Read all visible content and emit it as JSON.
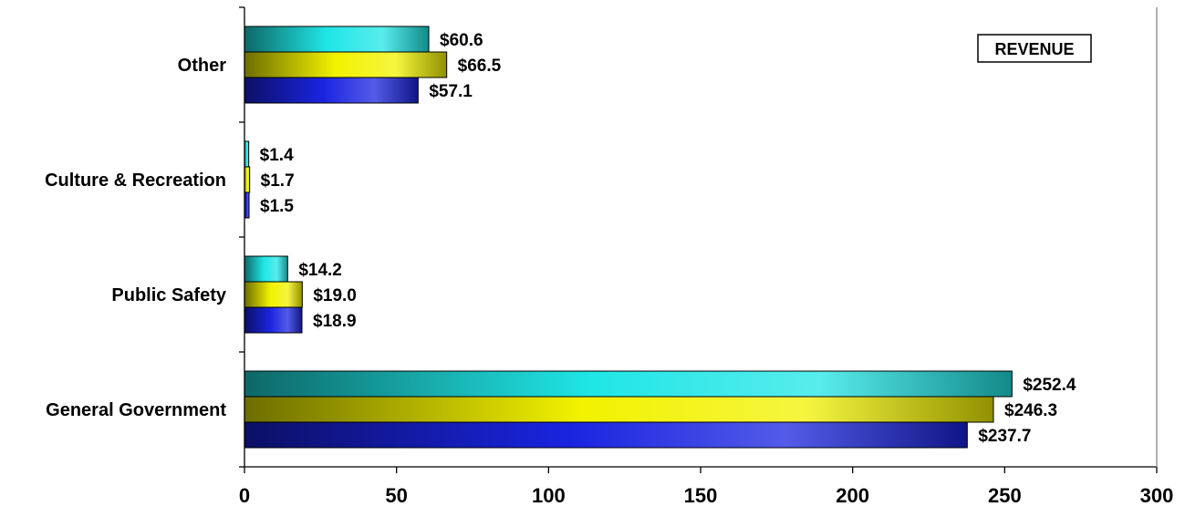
{
  "chart_data": {
    "type": "bar",
    "orientation": "horizontal",
    "categories": [
      "General Government",
      "Public Safety",
      "Culture & Recreation",
      "Other"
    ],
    "series": [
      {
        "values": [
          237.7,
          18.9,
          1.5,
          57.1
        ],
        "labels": [
          "$237.7",
          "$18.9",
          "$1.5",
          "$57.1"
        ],
        "color": "#1a24e0"
      },
      {
        "values": [
          246.3,
          19.0,
          1.7,
          66.5
        ],
        "labels": [
          "$246.3",
          "$19.0",
          "$1.7",
          "$66.5"
        ],
        "color": "#f2f200"
      },
      {
        "values": [
          252.4,
          14.2,
          1.4,
          60.6
        ],
        "labels": [
          "$252.4",
          "$14.2",
          "$1.4",
          "$60.6"
        ],
        "color": "#20e6e6"
      }
    ],
    "xlim": [
      0,
      300
    ],
    "xticks": [
      0,
      50,
      100,
      150,
      200,
      250,
      300
    ],
    "grid": false,
    "annotation": "REVENUE"
  }
}
